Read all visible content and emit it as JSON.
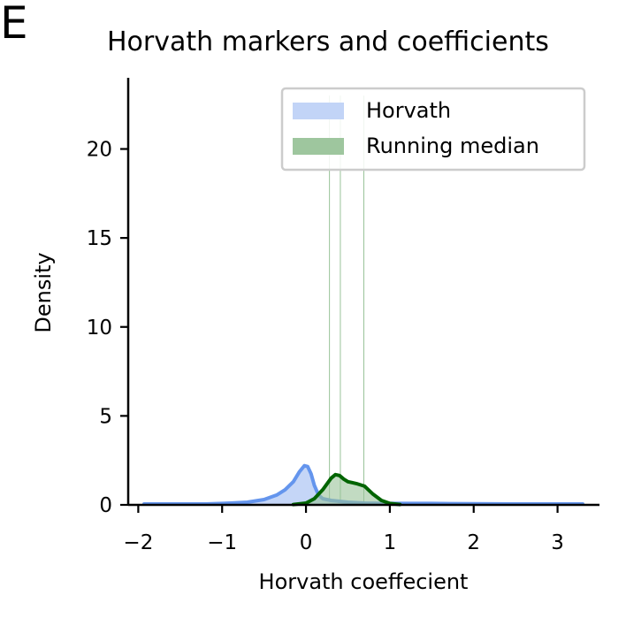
{
  "panel_letter": "E",
  "chart_data": {
    "type": "area",
    "title": "Horvath markers and coefficients",
    "xlabel": "Horvath coeffecient",
    "ylabel": "Density",
    "xlim": [
      -2.12,
      3.5
    ],
    "ylim": [
      0,
      24
    ],
    "xticks": [
      -2,
      -1,
      0,
      1,
      2,
      3
    ],
    "xtick_labels": [
      "−2",
      "−1",
      "0",
      "1",
      "2",
      "3"
    ],
    "yticks": [
      0,
      5,
      10,
      15,
      20
    ],
    "ytick_labels": [
      "0",
      "5",
      "10",
      "15",
      "20"
    ],
    "legend_position": "top-right",
    "grid": false,
    "vertical_lines": [
      0.28,
      0.41,
      0.69
    ],
    "vertical_line_top": 23,
    "series": [
      {
        "name": "Horvath",
        "color": "#6495ED",
        "fill": "#c2d4f7",
        "x": [
          -1.93,
          -1.6,
          -1.2,
          -0.9,
          -0.7,
          -0.5,
          -0.35,
          -0.25,
          -0.15,
          -0.08,
          -0.02,
          0.02,
          0.06,
          0.1,
          0.15,
          0.2,
          0.3,
          0.5,
          0.7,
          1.0,
          1.5,
          2.0,
          2.5,
          3.0,
          3.3
        ],
        "y": [
          0.05,
          0.05,
          0.05,
          0.1,
          0.15,
          0.3,
          0.55,
          0.85,
          1.3,
          1.85,
          2.2,
          2.15,
          1.75,
          1.1,
          0.55,
          0.35,
          0.25,
          0.15,
          0.1,
          0.08,
          0.08,
          0.06,
          0.05,
          0.05,
          0.05
        ]
      },
      {
        "name": "Running median",
        "color": "#006400",
        "fill": "#99c399",
        "x": [
          -0.15,
          0.0,
          0.1,
          0.2,
          0.3,
          0.35,
          0.4,
          0.45,
          0.5,
          0.55,
          0.6,
          0.7,
          0.8,
          0.9,
          1.0,
          1.12
        ],
        "y": [
          0.02,
          0.1,
          0.35,
          0.85,
          1.5,
          1.7,
          1.65,
          1.45,
          1.3,
          1.25,
          1.2,
          1.05,
          0.6,
          0.25,
          0.08,
          0.02
        ]
      }
    ]
  }
}
